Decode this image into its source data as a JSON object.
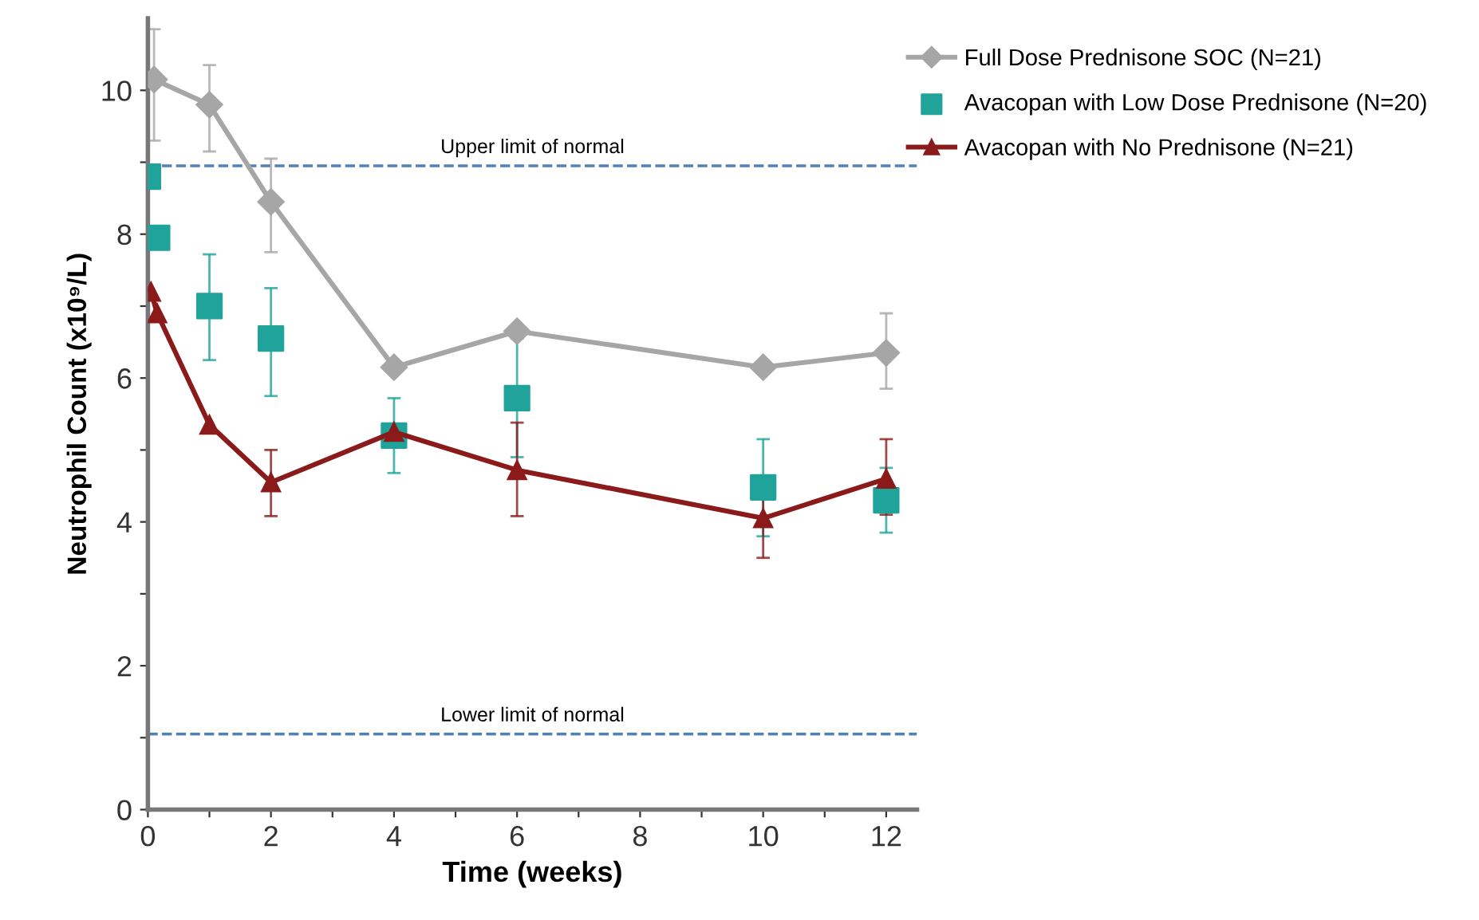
{
  "chart_data": {
    "type": "line",
    "xlabel": "Time (weeks)",
    "ylabel": "Neutrophil Count (x10⁹/L)",
    "xlim": [
      0,
      12.5
    ],
    "ylim": [
      0,
      11
    ],
    "xticks": [
      0,
      {
        "value": 1,
        "label": null
      },
      2,
      {
        "value": 3,
        "label": null
      },
      4,
      {
        "value": 5,
        "label": null
      },
      6,
      {
        "value": 7,
        "label": null
      },
      8,
      {
        "value": 9,
        "label": null
      },
      10,
      {
        "value": 11,
        "label": null
      },
      12
    ],
    "yticks": [
      0,
      {
        "value": 1,
        "label": null
      },
      2,
      {
        "value": 3,
        "label": null
      },
      4,
      {
        "value": 5,
        "label": null
      },
      6,
      {
        "value": 7,
        "label": null
      },
      8,
      {
        "value": 9,
        "label": null
      },
      10
    ],
    "legend": "top right",
    "grid": false,
    "series": [
      {
        "name": "Full Dose Prednisone SOC (N=21)",
        "color": "#a6a6a6",
        "marker": "diamond",
        "x": [
          0.1,
          1,
          2,
          4,
          6,
          10,
          12
        ],
        "values": [
          10.15,
          9.8,
          8.45,
          6.15,
          6.65,
          6.15,
          6.35
        ],
        "errors": [
          [
            9.3,
            10.85
          ],
          [
            9.15,
            10.35
          ],
          [
            7.75,
            9.05
          ],
          null,
          null,
          null,
          [
            5.85,
            6.9
          ]
        ]
      },
      {
        "name": "Avacopan with Low Dose Prednisone (N=20)",
        "type": "scatter",
        "color": "#1fa39a",
        "marker": "square",
        "x": [
          0,
          0.15,
          1,
          2,
          4,
          6,
          10,
          12
        ],
        "values": [
          8.8,
          7.95,
          7.0,
          6.55,
          5.2,
          5.72,
          4.48,
          4.3
        ],
        "errors": [
          null,
          null,
          [
            6.25,
            7.72
          ],
          [
            5.75,
            7.25
          ],
          [
            4.68,
            5.72
          ],
          [
            4.9,
            6.55
          ],
          [
            3.8,
            5.15
          ],
          [
            3.85,
            4.75
          ]
        ]
      },
      {
        "name": "Avacopan with No Prednisone (N=21)",
        "color": "#8b1a1a",
        "marker": "triangle",
        "x": [
          0.05,
          0.15,
          1,
          2,
          4,
          6,
          10,
          12
        ],
        "values": [
          7.2,
          6.9,
          5.35,
          4.55,
          5.25,
          4.72,
          4.05,
          4.6
        ],
        "errors": [
          null,
          null,
          null,
          [
            4.08,
            5.0
          ],
          null,
          [
            4.08,
            5.38
          ],
          [
            3.5,
            4.6
          ],
          [
            4.1,
            5.15
          ]
        ]
      }
    ],
    "ref_lines": [
      {
        "axis": "y",
        "value": 8.95,
        "label": "Upper limit of normal",
        "color": "#4f81bd",
        "line_style": "dashed"
      },
      {
        "axis": "y",
        "value": 1.05,
        "label": "Lower limit of normal",
        "color": "#4f81bd",
        "line_style": "dashed"
      }
    ]
  }
}
